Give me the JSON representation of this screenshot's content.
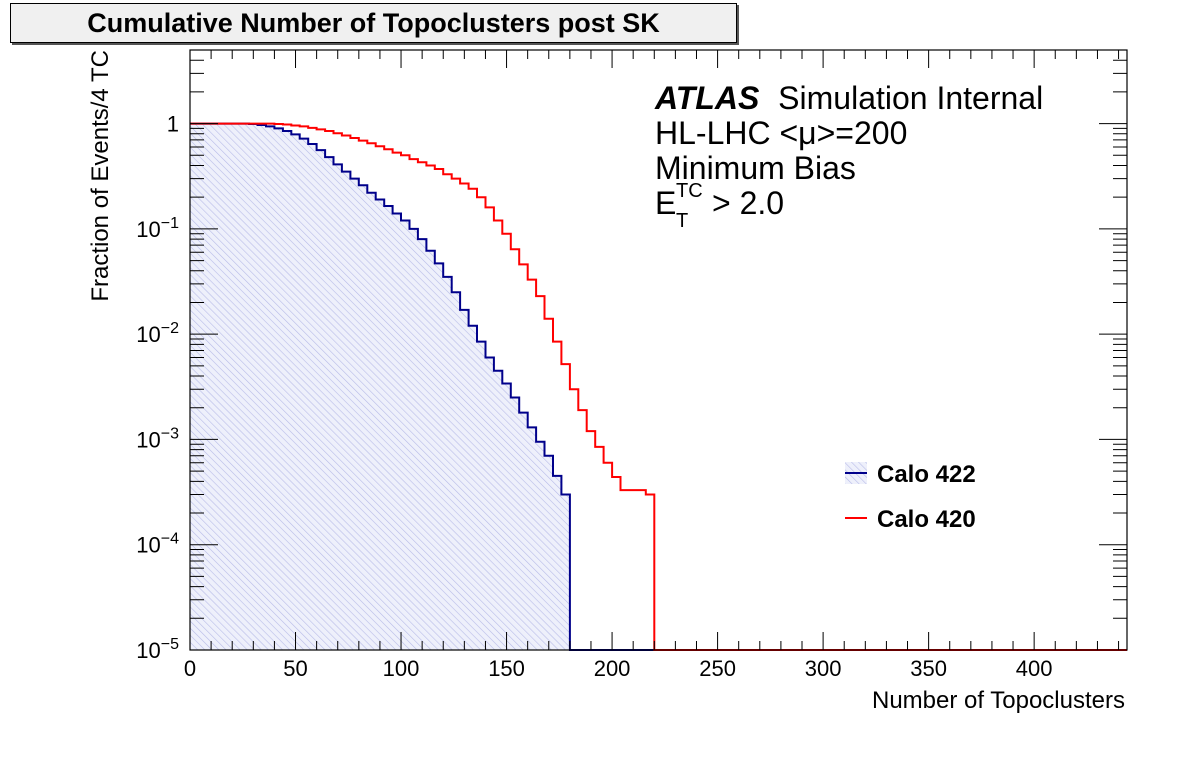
{
  "title": "Cumulative Number of Topoclusters post SK",
  "chart_data": {
    "type": "line",
    "style": "step histogram, log y scale",
    "title": "Cumulative Number of Topoclusters post SK",
    "xlabel": "Number of Topoclusters",
    "ylabel": "Fraction of Events/4 TC",
    "xlim": [
      0,
      444
    ],
    "ylim": [
      1e-05,
      5
    ],
    "yscale": "log",
    "bin_width": 4,
    "x_ticks": [
      "0",
      "50",
      "100",
      "150",
      "200",
      "250",
      "300",
      "350",
      "400"
    ],
    "y_ticks": [
      {
        "base": "10",
        "exp": "−5"
      },
      {
        "base": "10",
        "exp": "−4"
      },
      {
        "base": "10",
        "exp": "−3"
      },
      {
        "base": "10",
        "exp": "−2"
      },
      {
        "base": "10",
        "exp": "−1"
      },
      {
        "base": "1",
        "exp": ""
      }
    ],
    "legend_position": "right",
    "series": [
      {
        "name": "Calo 422",
        "color": "#00008b",
        "fill": "hatched light blue",
        "x": [
          0,
          4,
          8,
          12,
          16,
          20,
          24,
          28,
          32,
          36,
          40,
          44,
          48,
          52,
          56,
          60,
          64,
          68,
          72,
          76,
          80,
          84,
          88,
          92,
          96,
          100,
          104,
          108,
          112,
          116,
          120,
          124,
          128,
          132,
          136,
          140,
          144,
          148,
          152,
          156,
          160,
          164,
          168,
          172,
          176,
          180
        ],
        "values": [
          1,
          1,
          1,
          1,
          1,
          1,
          1,
          0.99,
          0.97,
          0.94,
          0.9,
          0.85,
          0.79,
          0.72,
          0.64,
          0.56,
          0.48,
          0.41,
          0.35,
          0.3,
          0.26,
          0.22,
          0.19,
          0.165,
          0.14,
          0.12,
          0.1,
          0.08,
          0.062,
          0.047,
          0.035,
          0.025,
          0.017,
          0.012,
          0.0085,
          0.006,
          0.0045,
          0.0034,
          0.0025,
          0.0018,
          0.0013,
          0.00095,
          0.0007,
          0.00045,
          0.0003,
          1e-07
        ]
      },
      {
        "name": "Calo 420",
        "color": "#ff0000",
        "x": [
          0,
          4,
          8,
          12,
          16,
          20,
          24,
          28,
          32,
          36,
          40,
          44,
          48,
          52,
          56,
          60,
          64,
          68,
          72,
          76,
          80,
          84,
          88,
          92,
          96,
          100,
          104,
          108,
          112,
          116,
          120,
          124,
          128,
          132,
          136,
          140,
          144,
          148,
          152,
          156,
          160,
          164,
          168,
          172,
          176,
          180,
          184,
          188,
          192,
          196,
          200,
          204,
          208,
          212,
          216,
          220
        ],
        "values": [
          1,
          1,
          1,
          1,
          1,
          1,
          1,
          1,
          1,
          1,
          0.99,
          0.98,
          0.96,
          0.94,
          0.91,
          0.88,
          0.85,
          0.81,
          0.77,
          0.73,
          0.69,
          0.65,
          0.61,
          0.57,
          0.53,
          0.5,
          0.46,
          0.43,
          0.4,
          0.37,
          0.33,
          0.3,
          0.27,
          0.24,
          0.2,
          0.16,
          0.12,
          0.09,
          0.064,
          0.046,
          0.033,
          0.023,
          0.014,
          0.0085,
          0.0052,
          0.003,
          0.0019,
          0.0012,
          0.00085,
          0.0006,
          0.00044,
          0.00033,
          0.00033,
          0.00033,
          0.0003,
          1e-07
        ]
      }
    ]
  },
  "annotation": {
    "atlas": "ATLAS",
    "label": "Simulation Internal",
    "line2_prefix": "HL-LHC <",
    "line2_mu": "μ",
    "line2_suffix": ">=200",
    "line3": "Minimum Bias",
    "line4_var": "E",
    "line4_sup": "TC",
    "line4_sub": "T",
    "line4_rest": "> 2.0"
  }
}
